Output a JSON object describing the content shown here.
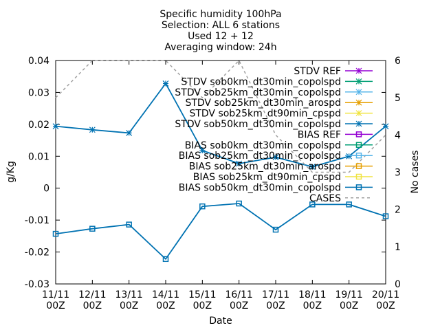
{
  "chart_data": {
    "type": "line",
    "title_lines": [
      "Specific humidity 100hPa",
      "Selection: ALL       6 stations",
      "Used 12 + 12",
      "Averaging window: 24h"
    ],
    "xlabel": "Date",
    "ylabel": "g/Kg",
    "y2label": "No cases",
    "categories": [
      [
        "11/11",
        "00Z"
      ],
      [
        "12/11",
        "00Z"
      ],
      [
        "13/11",
        "00Z"
      ],
      [
        "14/11",
        "00Z"
      ],
      [
        "15/11",
        "00Z"
      ],
      [
        "16/11",
        "00Z"
      ],
      [
        "17/11",
        "00Z"
      ],
      [
        "18/11",
        "00Z"
      ],
      [
        "19/11",
        "00Z"
      ],
      [
        "20/11",
        "00Z"
      ]
    ],
    "ylim": [
      -0.03,
      0.04
    ],
    "yticks": [
      "-0.03",
      "-0.02",
      "-0.01",
      "0",
      "0.01",
      "0.02",
      "0.03",
      "0.04"
    ],
    "y2lim": [
      0,
      6
    ],
    "y2ticks": [
      "0",
      "1",
      "2",
      "3",
      "4",
      "5",
      "6"
    ],
    "grid": false,
    "legend_position": "top-right",
    "legend": [
      {
        "label": "STDV REF",
        "color": "#9400d3",
        "marker": "star"
      },
      {
        "label": "STDV sob0km_dt30min_copolspd",
        "color": "#009e73",
        "marker": "star"
      },
      {
        "label": "STDV sob25km_dt30min_copolspd",
        "color": "#56b4e9",
        "marker": "star"
      },
      {
        "label": "STDV sob25km_dt30min_arospd",
        "color": "#e69f00",
        "marker": "star"
      },
      {
        "label": "STDV sob25km_dt90min_cpspd",
        "color": "#f0e442",
        "marker": "star"
      },
      {
        "label": "STDV sob50km_dt30min_copolspd",
        "color": "#0072b2",
        "marker": "star"
      },
      {
        "label": "BIAS REF",
        "color": "#9400d3",
        "marker": "square"
      },
      {
        "label": "BIAS sob0km_dt30min_copolspd",
        "color": "#009e73",
        "marker": "square"
      },
      {
        "label": "BIAS sob25km_dt30min_copolspd",
        "color": "#56b4e9",
        "marker": "square"
      },
      {
        "label": "BIAS sob25km_dt30min_arospd",
        "color": "#e69f00",
        "marker": "square"
      },
      {
        "label": "BIAS sob25km_dt90min_cpspd",
        "color": "#f0e442",
        "marker": "square"
      },
      {
        "label": "BIAS sob50km_dt30min_copolspd",
        "color": "#0072b2",
        "marker": "square"
      },
      {
        "label": "CASES",
        "color": "#a0a0a0",
        "marker": "dashed"
      }
    ],
    "series": [
      {
        "name": "STDV sob50km_dt30min_copolspd",
        "axis": "y",
        "color": "#0072b2",
        "marker": "star",
        "values": [
          0.0194,
          0.0183,
          0.0173,
          0.0328,
          0.0118,
          0.0077,
          0.0097,
          0.0067,
          0.01,
          0.0194
        ]
      },
      {
        "name": "BIAS sob50km_dt30min_copolspd",
        "axis": "y",
        "color": "#0072b2",
        "marker": "square",
        "values": [
          -0.0143,
          -0.0127,
          -0.0114,
          -0.0222,
          -0.0057,
          -0.0048,
          -0.013,
          -0.0051,
          -0.0051,
          -0.0088
        ]
      },
      {
        "name": "CASES",
        "axis": "y2",
        "color": "#a0a0a0",
        "marker": "dashed",
        "values": [
          5,
          6,
          6,
          6,
          5,
          6,
          4,
          3,
          3,
          4
        ]
      }
    ]
  }
}
